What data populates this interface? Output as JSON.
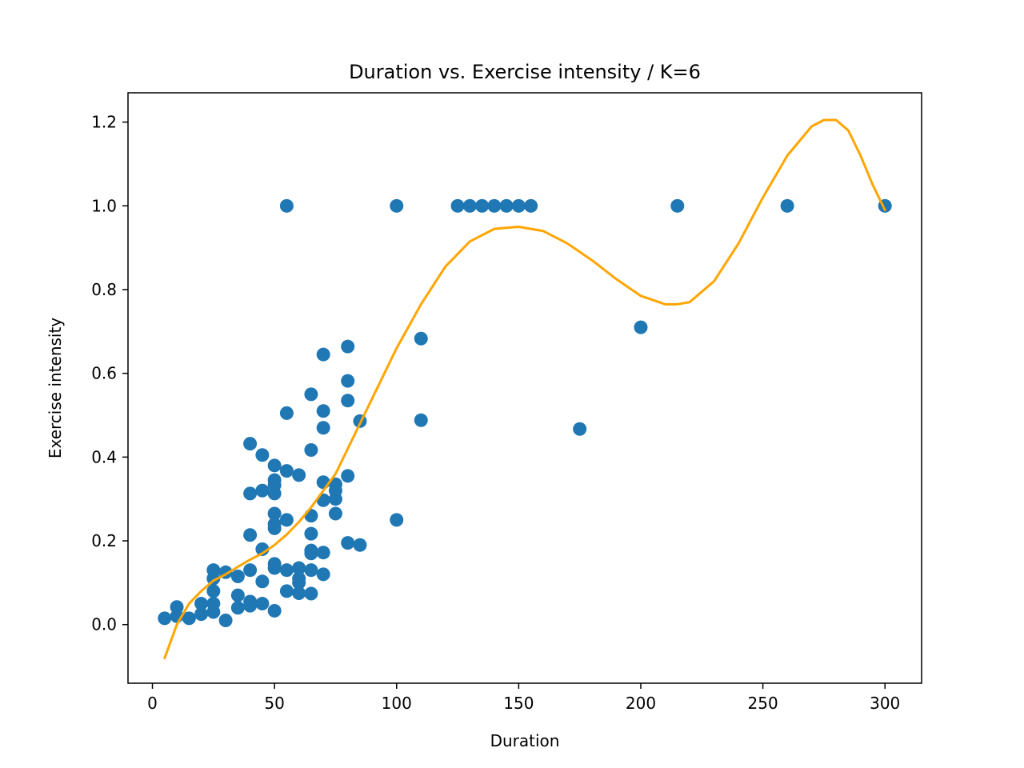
{
  "chart_data": {
    "type": "scatter",
    "title": "Duration vs. Exercise intensity / K=6",
    "xlabel": "Duration",
    "ylabel": "Exercise intensity",
    "xlim": [
      -10,
      315
    ],
    "ylim": [
      -0.14,
      1.27
    ],
    "xticks": [
      0,
      50,
      100,
      150,
      200,
      250,
      300
    ],
    "yticks": [
      0.0,
      0.2,
      0.4,
      0.6,
      0.8,
      1.0,
      1.2
    ],
    "xtick_labels": [
      "0",
      "50",
      "100",
      "150",
      "200",
      "250",
      "300"
    ],
    "ytick_labels": [
      "0.0",
      "0.2",
      "0.4",
      "0.6",
      "0.8",
      "1.0",
      "1.2"
    ],
    "grid": false,
    "legend": "none",
    "colors": {
      "points": "#1f77b4",
      "fit": "#ffa500"
    },
    "series": [
      {
        "kind": "scatter",
        "points": [
          [
            5,
            0.015
          ],
          [
            10,
            0.02
          ],
          [
            10,
            0.042
          ],
          [
            15,
            0.015
          ],
          [
            20,
            0.025
          ],
          [
            20,
            0.05
          ],
          [
            25,
            0.13
          ],
          [
            25,
            0.11
          ],
          [
            25,
            0.08
          ],
          [
            25,
            0.05
          ],
          [
            25,
            0.03
          ],
          [
            30,
            0.125
          ],
          [
            30,
            0.01
          ],
          [
            35,
            0.115
          ],
          [
            35,
            0.07
          ],
          [
            35,
            0.04
          ],
          [
            40,
            0.432
          ],
          [
            40,
            0.313
          ],
          [
            40,
            0.214
          ],
          [
            40,
            0.13
          ],
          [
            40,
            0.055
          ],
          [
            40,
            0.045
          ],
          [
            45,
            0.405
          ],
          [
            45,
            0.32
          ],
          [
            45,
            0.18
          ],
          [
            45,
            0.103
          ],
          [
            45,
            0.05
          ],
          [
            50,
            0.38
          ],
          [
            50,
            0.345
          ],
          [
            50,
            0.333
          ],
          [
            50,
            0.313
          ],
          [
            50,
            0.265
          ],
          [
            50,
            0.24
          ],
          [
            50,
            0.23
          ],
          [
            50,
            0.145
          ],
          [
            50,
            0.135
          ],
          [
            50,
            0.033
          ],
          [
            55,
            0.505
          ],
          [
            55,
            0.367
          ],
          [
            55,
            0.25
          ],
          [
            55,
            0.13
          ],
          [
            55,
            0.08
          ],
          [
            60,
            0.357
          ],
          [
            60,
            0.135
          ],
          [
            60,
            0.11
          ],
          [
            60,
            0.1
          ],
          [
            60,
            0.075
          ],
          [
            65,
            0.55
          ],
          [
            65,
            0.417
          ],
          [
            65,
            0.26
          ],
          [
            65,
            0.217
          ],
          [
            65,
            0.177
          ],
          [
            65,
            0.17
          ],
          [
            65,
            0.13
          ],
          [
            65,
            0.074
          ],
          [
            70,
            0.645
          ],
          [
            70,
            0.51
          ],
          [
            70,
            0.47
          ],
          [
            70,
            0.34
          ],
          [
            70,
            0.297
          ],
          [
            70,
            0.172
          ],
          [
            70,
            0.12
          ],
          [
            75,
            0.335
          ],
          [
            75,
            0.32
          ],
          [
            75,
            0.3
          ],
          [
            75,
            0.265
          ],
          [
            80,
            0.664
          ],
          [
            80,
            0.582
          ],
          [
            80,
            0.535
          ],
          [
            80,
            0.355
          ],
          [
            80,
            0.195
          ],
          [
            85,
            0.486
          ],
          [
            85,
            0.19
          ],
          [
            55,
            1.0
          ],
          [
            100,
            1.0
          ],
          [
            100,
            0.25
          ],
          [
            110,
            0.683
          ],
          [
            110,
            0.488
          ],
          [
            125,
            1.0
          ],
          [
            130,
            1.0
          ],
          [
            135,
            1.0
          ],
          [
            140,
            1.0
          ],
          [
            145,
            1.0
          ],
          [
            150,
            1.0
          ],
          [
            155,
            1.0
          ],
          [
            175,
            0.467
          ],
          [
            200,
            0.71
          ],
          [
            215,
            1.0
          ],
          [
            260,
            1.0
          ],
          [
            300,
            1.0
          ]
        ]
      },
      {
        "kind": "line",
        "x": [
          5,
          10,
          15,
          20,
          25,
          30,
          35,
          40,
          45,
          50,
          55,
          60,
          65,
          70,
          75,
          80,
          85,
          90,
          95,
          100,
          110,
          120,
          130,
          140,
          150,
          160,
          170,
          180,
          190,
          200,
          210,
          215,
          220,
          230,
          240,
          250,
          260,
          270,
          275,
          280,
          285,
          290,
          295,
          300
        ],
        "y": [
          -0.08,
          0.0,
          0.05,
          0.08,
          0.105,
          0.12,
          0.138,
          0.155,
          0.17,
          0.19,
          0.215,
          0.245,
          0.28,
          0.32,
          0.36,
          0.42,
          0.48,
          0.54,
          0.6,
          0.66,
          0.765,
          0.855,
          0.915,
          0.945,
          0.95,
          0.94,
          0.91,
          0.87,
          0.825,
          0.785,
          0.765,
          0.765,
          0.77,
          0.82,
          0.91,
          1.02,
          1.12,
          1.19,
          1.205,
          1.205,
          1.18,
          1.12,
          1.05,
          0.99
        ]
      }
    ]
  }
}
